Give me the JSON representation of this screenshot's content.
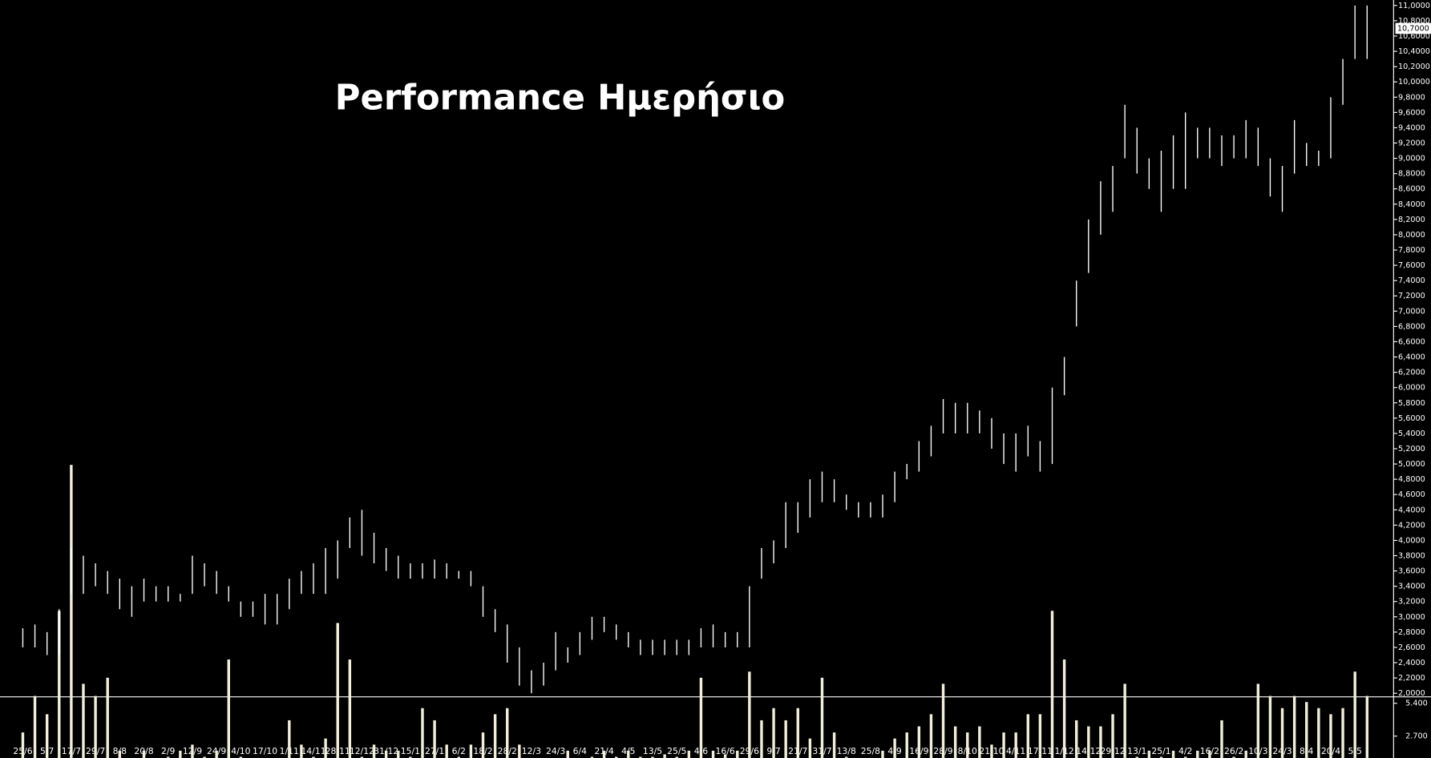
{
  "chart_data": {
    "type": "ohlc",
    "title": "Performance Ημερήσιο",
    "categories": [
      "25/6",
      null,
      "5/7",
      null,
      "17/7",
      null,
      "29/7",
      null,
      "8/8",
      null,
      "20/8",
      null,
      "2/9",
      null,
      "12/9",
      null,
      "24/9",
      null,
      "4/10",
      null,
      "17/10",
      null,
      "1/11",
      null,
      "14/11",
      null,
      "28/11",
      null,
      "12/12",
      null,
      "31/12",
      null,
      "15/1",
      null,
      "27/1",
      null,
      "6/2",
      null,
      "18/2",
      null,
      "28/2",
      null,
      "12/3",
      null,
      "24/3",
      null,
      "6/4",
      null,
      "21/4",
      null,
      "4/5",
      null,
      "13/5",
      null,
      "25/5",
      null,
      "4/6",
      null,
      "16/6",
      null,
      "29/6",
      null,
      "9/7",
      null,
      "21/7",
      null,
      "31/7",
      null,
      "13/8",
      null,
      "25/8",
      null,
      "4/9",
      null,
      "16/9",
      null,
      "28/9",
      null,
      "8/10",
      null,
      "21/10",
      null,
      "4/11",
      null,
      "17/11",
      null,
      "1/12",
      null,
      "14/12",
      null,
      "29/12",
      null,
      "13/1",
      null,
      "25/1",
      null,
      "4/2",
      null,
      "16/2",
      null,
      "26/2",
      null,
      "10/3",
      null,
      "24/3",
      null,
      "8/4",
      null,
      "20/4",
      null,
      "5/5",
      null
    ],
    "high": [
      2.85,
      2.9,
      2.8,
      3.1,
      3.9,
      3.8,
      3.7,
      3.6,
      3.5,
      3.4,
      3.5,
      3.4,
      3.4,
      3.3,
      3.8,
      3.7,
      3.6,
      3.4,
      3.2,
      3.2,
      3.3,
      3.3,
      3.5,
      3.6,
      3.7,
      3.9,
      4.0,
      4.3,
      4.4,
      4.1,
      3.9,
      3.8,
      3.7,
      3.7,
      3.75,
      3.7,
      3.6,
      3.6,
      3.4,
      3.1,
      2.9,
      2.6,
      2.3,
      2.4,
      2.8,
      2.6,
      2.8,
      3.0,
      3.0,
      2.9,
      2.8,
      2.7,
      2.7,
      2.7,
      2.7,
      2.7,
      2.85,
      2.9,
      2.8,
      2.8,
      3.4,
      3.9,
      4.0,
      4.5,
      4.5,
      4.8,
      4.9,
      4.8,
      4.6,
      4.5,
      4.5,
      4.6,
      4.9,
      5.0,
      5.3,
      5.5,
      5.85,
      5.8,
      5.8,
      5.7,
      5.6,
      5.4,
      5.4,
      5.5,
      5.3,
      6.0,
      6.4,
      7.4,
      8.2,
      8.7,
      8.9,
      9.7,
      9.4,
      9.0,
      9.1,
      9.3,
      9.6,
      9.4,
      9.4,
      9.3,
      9.3,
      9.5,
      9.4,
      9.0,
      8.9,
      9.5,
      9.2,
      9.1,
      9.8,
      10.3,
      11.0,
      11.0
    ],
    "low": [
      2.6,
      2.6,
      2.5,
      2.5,
      3.3,
      3.3,
      3.4,
      3.3,
      3.1,
      3.0,
      3.2,
      3.2,
      3.2,
      3.2,
      3.3,
      3.4,
      3.3,
      3.2,
      3.0,
      3.0,
      2.9,
      2.9,
      3.1,
      3.3,
      3.3,
      3.3,
      3.5,
      3.9,
      3.8,
      3.7,
      3.6,
      3.5,
      3.5,
      3.5,
      3.5,
      3.5,
      3.5,
      3.4,
      3.0,
      2.8,
      2.4,
      2.1,
      2.0,
      2.1,
      2.3,
      2.4,
      2.5,
      2.7,
      2.8,
      2.7,
      2.6,
      2.5,
      2.5,
      2.5,
      2.5,
      2.5,
      2.6,
      2.6,
      2.6,
      2.6,
      2.6,
      3.5,
      3.7,
      3.9,
      4.1,
      4.3,
      4.5,
      4.5,
      4.4,
      4.3,
      4.3,
      4.3,
      4.5,
      4.8,
      4.9,
      5.1,
      5.4,
      5.4,
      5.4,
      5.4,
      5.2,
      5.0,
      4.9,
      5.1,
      4.9,
      5.0,
      5.9,
      6.8,
      7.5,
      8.0,
      8.3,
      9.0,
      8.8,
      8.6,
      8.3,
      8.6,
      8.6,
      9.0,
      9.0,
      8.9,
      9.0,
      9.0,
      8.9,
      8.5,
      8.3,
      8.8,
      8.9,
      8.9,
      9.0,
      9.7,
      10.3,
      10.3
    ],
    "volume": [
      3000,
      6000,
      4500,
      13000,
      25000,
      7000,
      6000,
      7500,
      1500,
      700,
      1500,
      700,
      1000,
      1500,
      2000,
      1000,
      1500,
      9000,
      1000,
      800,
      800,
      600,
      4000,
      2000,
      1000,
      2500,
      12000,
      9000,
      1000,
      2000,
      1500,
      1500,
      1000,
      5000,
      4000,
      2000,
      1000,
      2000,
      3000,
      4500,
      5000,
      2000,
      800,
      500,
      800,
      1500,
      700,
      1000,
      1500,
      1000,
      1500,
      1000,
      1000,
      1200,
      1000,
      1500,
      7500,
      1500,
      1200,
      1500,
      8000,
      4000,
      5000,
      4000,
      5000,
      2500,
      7500,
      3000,
      1000,
      500,
      800,
      1500,
      2500,
      3000,
      3500,
      4500,
      7000,
      3500,
      3000,
      3500,
      2000,
      3000,
      3000,
      4500,
      4500,
      13000,
      9000,
      4000,
      3500,
      3500,
      4500,
      7000,
      1000,
      1500,
      1000,
      1500,
      1000,
      1500,
      1500,
      4000,
      1000,
      1500,
      7000,
      6000,
      5000,
      6000,
      5500,
      5000,
      4500,
      5000,
      8000,
      6000
    ],
    "color": "#ffffff",
    "volume_color": "#f2eedc",
    "ylim": [
      2,
      11
    ],
    "yticks": [
      {
        "value": 11,
        "label": "11,0000"
      },
      {
        "value": 10.8,
        "label": "10,8000"
      },
      {
        "value": 10.6,
        "label": "10,6000"
      },
      {
        "value": 10.4,
        "label": "10,4000"
      },
      {
        "value": 10.2,
        "label": "10,2000"
      },
      {
        "value": 10,
        "label": "10,0000"
      },
      {
        "value": 9.8,
        "label": "9,8000"
      },
      {
        "value": 9.6,
        "label": "9,6000"
      },
      {
        "value": 9.4,
        "label": "9,4000"
      },
      {
        "value": 9.2,
        "label": "9,2000"
      },
      {
        "value": 9,
        "label": "9,0000"
      },
      {
        "value": 8.8,
        "label": "8,8000"
      },
      {
        "value": 8.6,
        "label": "8,6000"
      },
      {
        "value": 8.4,
        "label": "8,4000"
      },
      {
        "value": 8.2,
        "label": "8,2000"
      },
      {
        "value": 8,
        "label": "8,0000"
      },
      {
        "value": 7.8,
        "label": "7,8000"
      },
      {
        "value": 7.6,
        "label": "7,6000"
      },
      {
        "value": 7.4,
        "label": "7,4000"
      },
      {
        "value": 7.2,
        "label": "7,2000"
      },
      {
        "value": 7,
        "label": "7,0000"
      },
      {
        "value": 6.8,
        "label": "6,8000"
      },
      {
        "value": 6.6,
        "label": "6,6000"
      },
      {
        "value": 6.4,
        "label": "6,4000"
      },
      {
        "value": 6.2,
        "label": "6,2000"
      },
      {
        "value": 6,
        "label": "6,0000"
      },
      {
        "value": 5.8,
        "label": "5,8000"
      },
      {
        "value": 5.6,
        "label": "5,6000"
      },
      {
        "value": 5.4,
        "label": "5,4000"
      },
      {
        "value": 5.2,
        "label": "5,2000"
      },
      {
        "value": 5,
        "label": "5,0000"
      },
      {
        "value": 4.8,
        "label": "4,8000"
      },
      {
        "value": 4.6,
        "label": "4,6000"
      },
      {
        "value": 4.4,
        "label": "4,4000"
      },
      {
        "value": 4.2,
        "label": "4,2000"
      },
      {
        "value": 4,
        "label": "4,0000"
      },
      {
        "value": 3.8,
        "label": "3,8000"
      },
      {
        "value": 3.6,
        "label": "3,6000"
      },
      {
        "value": 3.4,
        "label": "3,4000"
      },
      {
        "value": 3.2,
        "label": "3,2000"
      },
      {
        "value": 3,
        "label": "3,0000"
      },
      {
        "value": 2.8,
        "label": "2,8000"
      },
      {
        "value": 2.6,
        "label": "2,6000"
      },
      {
        "value": 2.4,
        "label": "2,4000"
      },
      {
        "value": 2.2,
        "label": "2,2000"
      },
      {
        "value": 2,
        "label": "2,0000"
      }
    ],
    "last_price": {
      "value": 10.7,
      "label": "10,7000"
    },
    "volume_ylim": [
      0,
      5400
    ],
    "volume_ticks": [
      {
        "value": 5400,
        "label": "5.400"
      },
      {
        "value": 2700,
        "label": "2.700"
      },
      0
    ]
  }
}
